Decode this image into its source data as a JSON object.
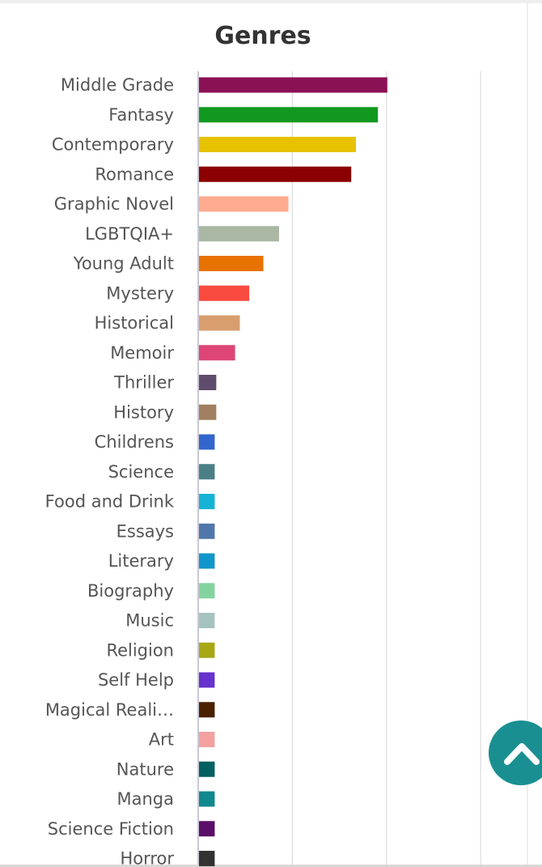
{
  "chart_data": {
    "type": "bar",
    "orientation": "horizontal",
    "title": "Genres",
    "xlabel": "",
    "ylabel": "",
    "grid": true,
    "xlim": [
      0,
      20
    ],
    "categories": [
      "Middle Grade",
      "Fantasy",
      "Contemporary",
      "Romance",
      "Graphic Novel",
      "LGBTQIA+",
      "Young Adult",
      "Mystery",
      "Historical",
      "Memoir",
      "Thriller",
      "History",
      "Childrens",
      "Science",
      "Food and Drink",
      "Essays",
      "Literary",
      "Biography",
      "Music",
      "Religion",
      "Self Help",
      "Magical Reali…",
      "Art",
      "Nature",
      "Manga",
      "Science Fiction",
      "Horror"
    ],
    "values": [
      12,
      11.4,
      10,
      9.7,
      5.7,
      5.1,
      4.1,
      3.2,
      2.6,
      2.3,
      1.1,
      1.1,
      1,
      1,
      1,
      1,
      1,
      1,
      1,
      1,
      1,
      1,
      1,
      1,
      1,
      1,
      1
    ],
    "colors": [
      "#8b1155",
      "#11991f",
      "#e6c200",
      "#8b0000",
      "#ffab8f",
      "#a9b7a3",
      "#e87200",
      "#f94a3f",
      "#d99e6e",
      "#dd4677",
      "#5f4b6b",
      "#a08060",
      "#3366cc",
      "#4a7f85",
      "#15b4d6",
      "#4f77aa",
      "#1196cc",
      "#84d39e",
      "#a4c3bf",
      "#a8a815",
      "#6633cc",
      "#4a2200",
      "#f4a0a0",
      "#036060",
      "#12888f",
      "#5a1068",
      "#333333"
    ]
  },
  "scroll_top": {
    "icon": "chevron-up-icon",
    "color": "#1a8f91"
  }
}
